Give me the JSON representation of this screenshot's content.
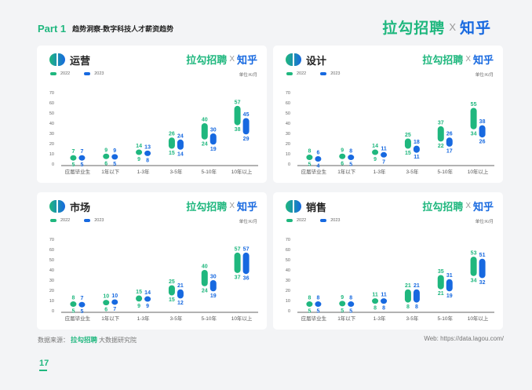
{
  "header": {
    "part": "Part 1",
    "subtitle": "趋势洞察-数字科技人才薪资趋势"
  },
  "brand": {
    "lagou": "拉勾招聘",
    "x": "X",
    "zhihu": "知乎"
  },
  "colors": {
    "c2022": "#1fb77e",
    "c2023": "#1769e0",
    "axis": "#333333"
  },
  "legend": {
    "s2022": "2022",
    "s2023": "2023"
  },
  "unit": "单位:K/月",
  "footer": {
    "source_prefix": "数据来源：",
    "source_brand": "拉勾招聘",
    "source_suffix": "大数据研究院",
    "web": "Web: https://data.lagou.com/"
  },
  "page_number": "17",
  "chart_data": [
    {
      "type": "range-bar",
      "title": "运营",
      "categories": [
        "应届毕业生",
        "1年以下",
        "1-3年",
        "3-5年",
        "5-10年",
        "10年以上"
      ],
      "ylim": [
        0,
        70
      ],
      "yticks": [
        0,
        10,
        20,
        30,
        40,
        50,
        60,
        70
      ],
      "series": [
        {
          "name": "2022",
          "low": [
            5,
            6,
            9,
            15,
            24,
            38
          ],
          "high": [
            7,
            9,
            14,
            26,
            40,
            57
          ]
        },
        {
          "name": "2023",
          "low": [
            5,
            5,
            8,
            14,
            19,
            29
          ],
          "high": [
            7,
            9,
            13,
            24,
            30,
            45
          ]
        }
      ]
    },
    {
      "type": "range-bar",
      "title": "设计",
      "categories": [
        "应届毕业生",
        "1年以下",
        "1-3年",
        "3-5年",
        "5-10年",
        "10年以上"
      ],
      "ylim": [
        0,
        70
      ],
      "yticks": [
        0,
        10,
        20,
        30,
        40,
        50,
        60,
        70
      ],
      "series": [
        {
          "name": "2022",
          "low": [
            5,
            6,
            9,
            15,
            22,
            34
          ],
          "high": [
            8,
            9,
            14,
            25,
            37,
            55
          ]
        },
        {
          "name": "2023",
          "low": [
            4,
            5,
            7,
            11,
            17,
            26
          ],
          "high": [
            6,
            8,
            11,
            18,
            26,
            38
          ]
        }
      ]
    },
    {
      "type": "range-bar",
      "title": "市场",
      "categories": [
        "应届毕业生",
        "1年以下",
        "1-3年",
        "3-5年",
        "5-10年",
        "10年以上"
      ],
      "ylim": [
        0,
        70
      ],
      "yticks": [
        0,
        10,
        20,
        30,
        40,
        50,
        60,
        70
      ],
      "series": [
        {
          "name": "2022",
          "low": [
            5,
            6,
            9,
            15,
            24,
            37
          ],
          "high": [
            8,
            10,
            15,
            25,
            40,
            57
          ]
        },
        {
          "name": "2023",
          "low": [
            5,
            7,
            9,
            12,
            19,
            36
          ],
          "high": [
            7,
            10,
            14,
            21,
            30,
            57
          ]
        }
      ]
    },
    {
      "type": "range-bar",
      "title": "销售",
      "categories": [
        "应届毕业生",
        "1年以下",
        "1-3年",
        "3-5年",
        "5-10年",
        "10年以上"
      ],
      "ylim": [
        0,
        70
      ],
      "yticks": [
        0,
        10,
        20,
        30,
        40,
        50,
        60,
        70
      ],
      "series": [
        {
          "name": "2022",
          "low": [
            5,
            5,
            8,
            8,
            21,
            34
          ],
          "high": [
            8,
            9,
            11,
            21,
            35,
            53
          ]
        },
        {
          "name": "2023",
          "low": [
            5,
            5,
            8,
            8,
            19,
            32
          ],
          "high": [
            8,
            8,
            11,
            21,
            31,
            51
          ]
        }
      ]
    }
  ]
}
